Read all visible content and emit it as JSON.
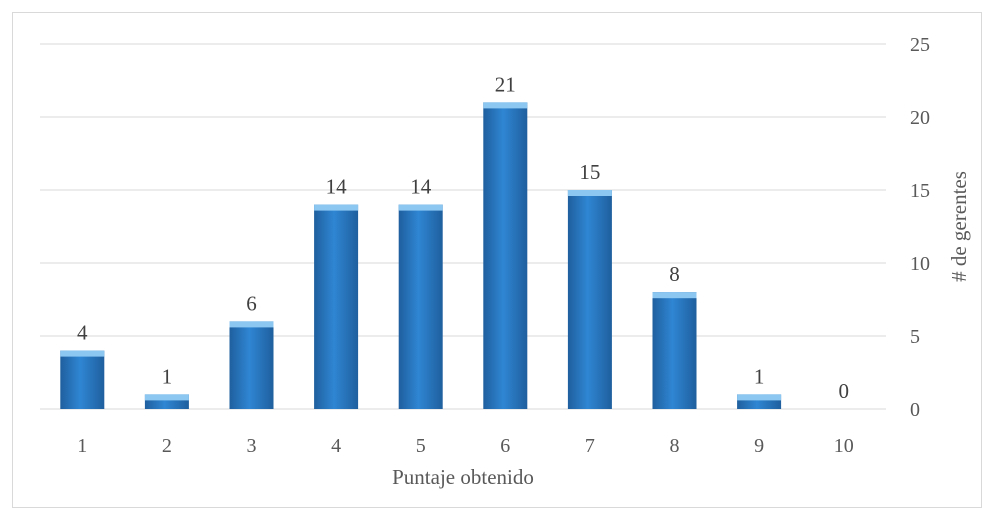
{
  "chart_data": {
    "type": "bar",
    "categories": [
      "1",
      "2",
      "3",
      "4",
      "5",
      "6",
      "7",
      "8",
      "9",
      "10"
    ],
    "values": [
      4,
      1,
      6,
      14,
      14,
      21,
      15,
      8,
      1,
      0
    ],
    "xlabel": "Puntaje obtenido",
    "ylabel": "# de gerentes",
    "ylim": [
      0,
      25
    ],
    "yticks": [
      "0",
      "5",
      "10",
      "15",
      "20",
      "25"
    ],
    "y_axis_side": "right",
    "grid": true,
    "legend": "none",
    "bar_color": "#2f86d3",
    "bar_highlight": "#8cc7f2",
    "bar_shadow": "#1f5f9e",
    "grid_color": "#d9d9d9"
  }
}
